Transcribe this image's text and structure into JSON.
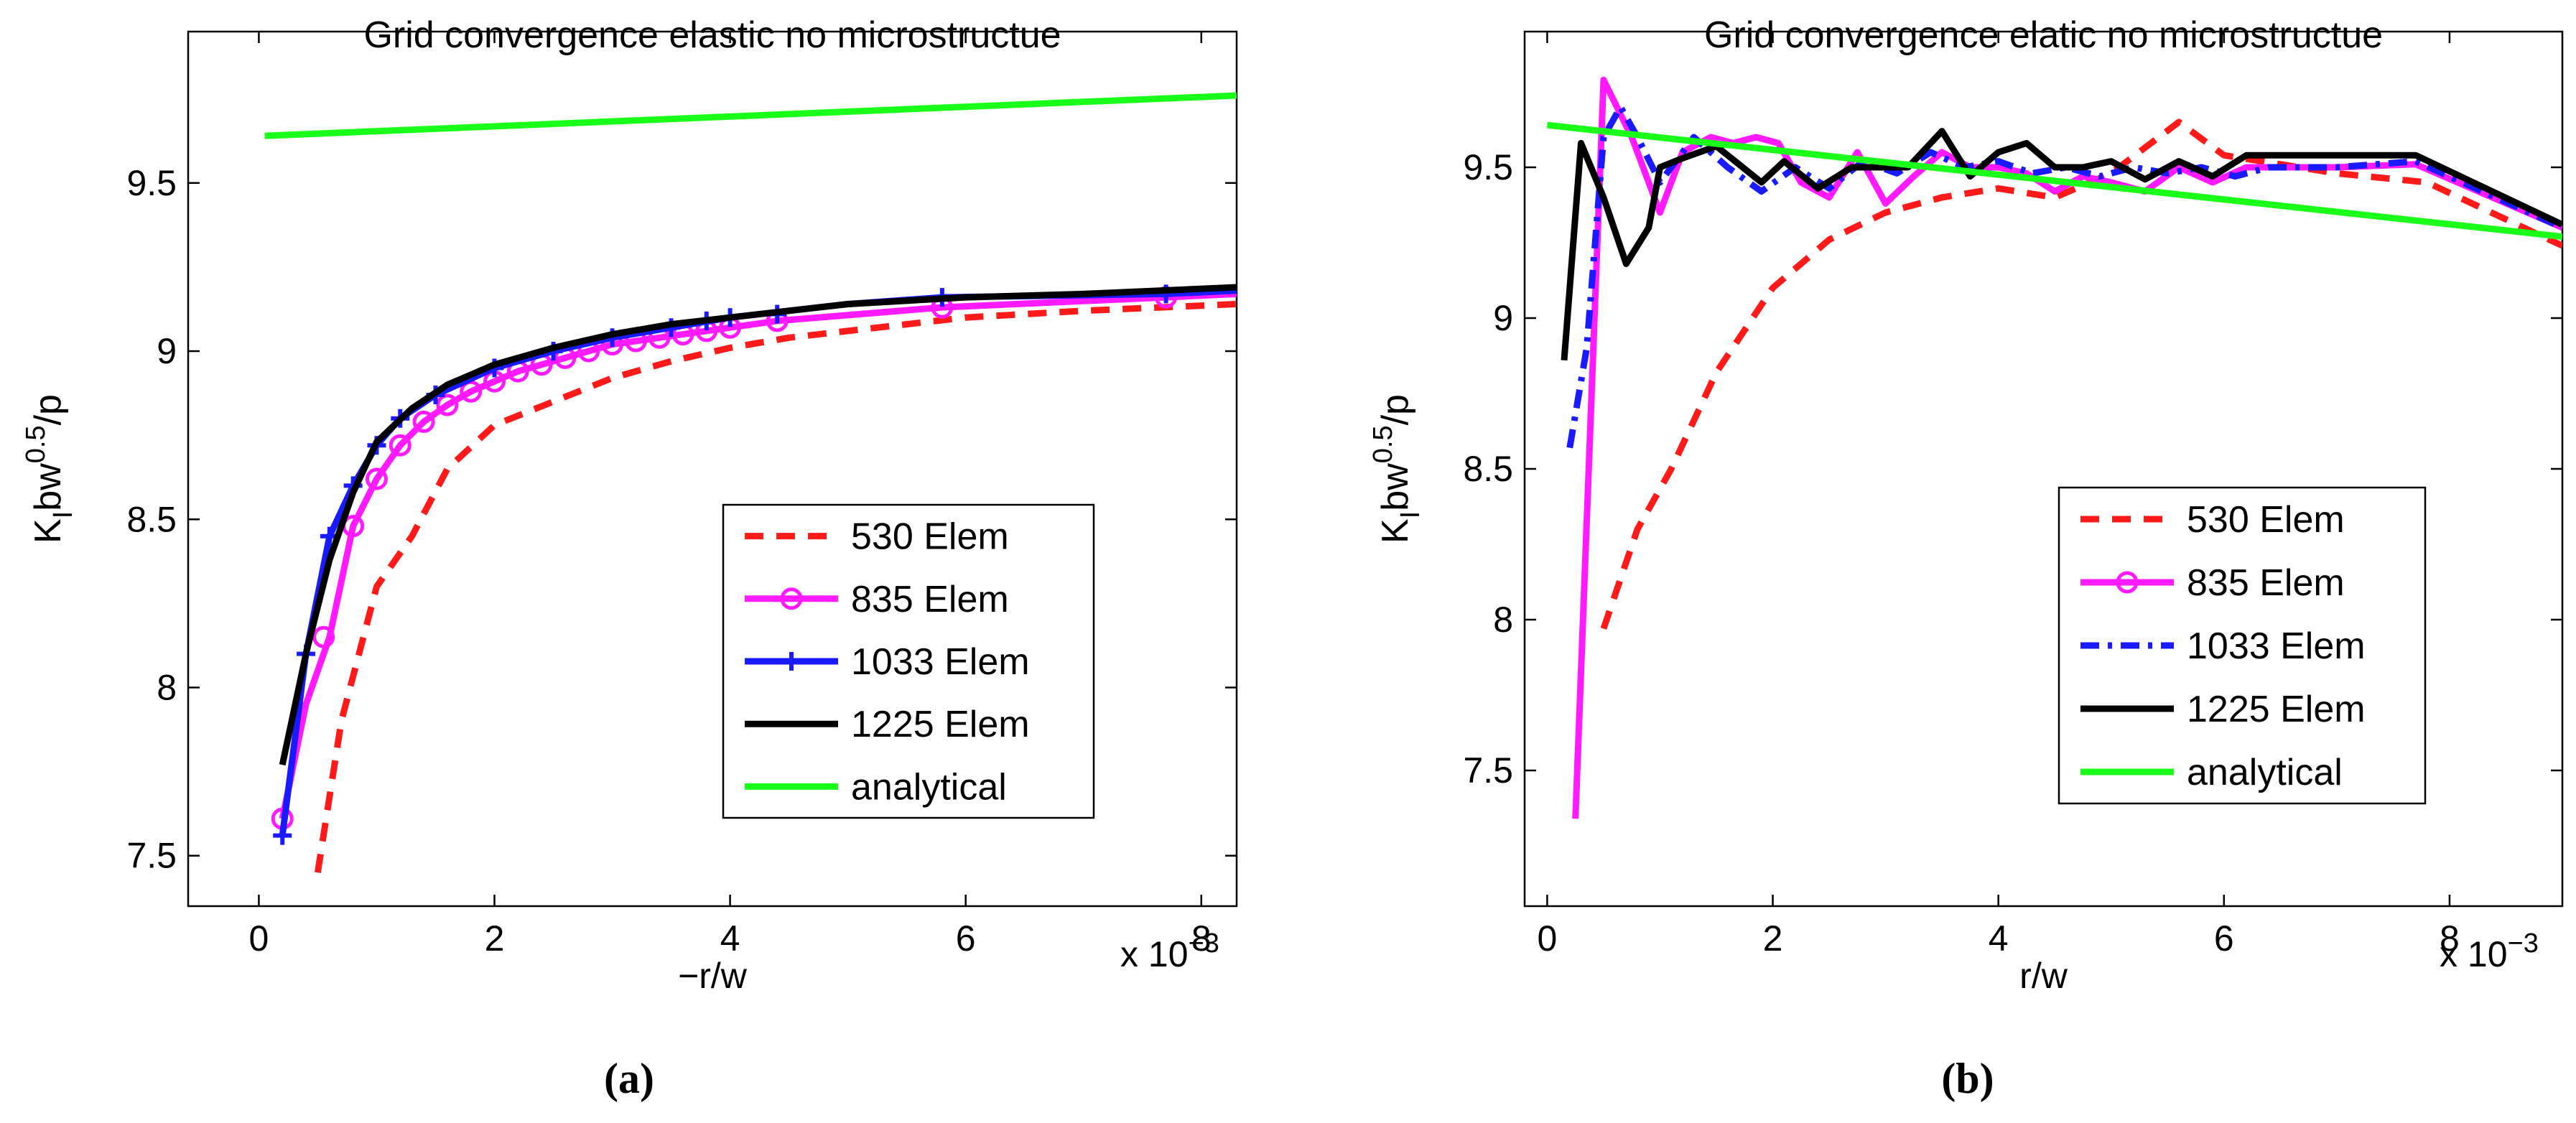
{
  "chart_data": [
    {
      "type": "line",
      "title": "Grid convergence elastic no microstructue",
      "xlabel": "−r/w",
      "ylabel_main": "K",
      "ylabel_sub": "I",
      "ylabel_rest": "bw",
      "ylabel_sup": "0.5",
      "ylabel_end": "/p",
      "x_exponent_label": "x 10",
      "x_exponent_sup": "−3",
      "xlim": [
        -0.6,
        8.3
      ],
      "ylim": [
        7.35,
        9.95
      ],
      "xticks": [
        0,
        2,
        4,
        6,
        8
      ],
      "xtick_labels": [
        "0",
        "2",
        "4",
        "6",
        "8"
      ],
      "yticks": [
        7.5,
        8,
        8.5,
        9,
        9.5
      ],
      "ytick_labels": [
        "7.5",
        "8",
        "8.5",
        "9",
        "9.5"
      ],
      "panel_label": "(a)",
      "legend_position": "lower-right-inside",
      "series": [
        {
          "name": "530 Elem",
          "color": "#ff1a1a",
          "dash": "dashed",
          "marker": "none",
          "x": [
            0.5,
            0.7,
            1.0,
            1.3,
            1.6,
            2.0,
            2.5,
            3.0,
            3.5,
            4.0,
            4.5,
            5.0,
            5.5,
            6.0,
            7.0,
            8.3
          ],
          "y": [
            7.45,
            7.9,
            8.3,
            8.45,
            8.65,
            8.78,
            8.85,
            8.92,
            8.97,
            9.01,
            9.04,
            9.06,
            9.08,
            9.1,
            9.12,
            9.14
          ]
        },
        {
          "name": "835 Elem",
          "color": "#ff1aff",
          "dash": "solid",
          "marker": "circle",
          "x": [
            0.2,
            0.4,
            0.6,
            0.8,
            1.0,
            1.2,
            1.4,
            1.6,
            1.8,
            2.0,
            2.2,
            2.4,
            2.6,
            2.8,
            3.0,
            3.2,
            3.4,
            3.6,
            3.8,
            4.0,
            4.4,
            5.8,
            7.7,
            8.3
          ],
          "y": [
            7.61,
            7.95,
            8.15,
            8.48,
            8.62,
            8.72,
            8.79,
            8.84,
            8.88,
            8.91,
            8.94,
            8.96,
            8.98,
            9.0,
            9.02,
            9.03,
            9.04,
            9.05,
            9.06,
            9.07,
            9.09,
            9.13,
            9.16,
            9.17
          ],
          "marker_x": [
            0.2,
            0.55,
            0.8,
            1.0,
            1.2,
            1.4,
            1.6,
            1.8,
            2.0,
            2.2,
            2.4,
            2.6,
            2.8,
            3.0,
            3.2,
            3.4,
            3.6,
            3.8,
            4.0,
            4.4,
            5.8,
            7.7
          ],
          "marker_y": [
            7.61,
            8.15,
            8.48,
            8.62,
            8.72,
            8.79,
            8.84,
            8.88,
            8.91,
            8.94,
            8.96,
            8.98,
            9.0,
            9.02,
            9.03,
            9.04,
            9.05,
            9.06,
            9.07,
            9.09,
            9.13,
            9.16
          ]
        },
        {
          "name": "1033 Elem",
          "color": "#1a1aff",
          "dash": "solid",
          "marker": "plus",
          "x": [
            0.2,
            0.4,
            0.6,
            0.8,
            1.0,
            1.2,
            1.5,
            2.0,
            2.5,
            3.0,
            3.5,
            4.0,
            4.5,
            5.0,
            5.8,
            7.7,
            8.3
          ],
          "y": [
            7.56,
            8.1,
            8.45,
            8.6,
            8.72,
            8.8,
            8.87,
            8.95,
            9.0,
            9.04,
            9.07,
            9.1,
            9.12,
            9.14,
            9.16,
            9.17,
            9.18
          ],
          "marker_x": [
            0.2,
            0.4,
            0.6,
            0.8,
            1.0,
            1.2,
            1.5,
            2.0,
            2.5,
            3.0,
            3.5,
            3.8,
            4.0,
            4.4,
            5.8,
            7.7
          ],
          "marker_y": [
            7.56,
            8.1,
            8.45,
            8.6,
            8.72,
            8.8,
            8.87,
            8.95,
            9.0,
            9.04,
            9.07,
            9.09,
            9.1,
            9.11,
            9.16,
            9.17
          ]
        },
        {
          "name": "1225 Elem",
          "color": "#000000",
          "dash": "solid",
          "marker": "none",
          "x": [
            0.2,
            0.4,
            0.6,
            0.8,
            1.0,
            1.3,
            1.6,
            2.0,
            2.5,
            3.0,
            3.5,
            4.0,
            4.5,
            5.0,
            6.0,
            7.0,
            8.3
          ],
          "y": [
            7.77,
            8.1,
            8.38,
            8.58,
            8.73,
            8.83,
            8.9,
            8.96,
            9.01,
            9.05,
            9.08,
            9.1,
            9.12,
            9.14,
            9.16,
            9.17,
            9.19
          ]
        },
        {
          "name": "analytical",
          "color": "#1aff1a",
          "dash": "solid",
          "marker": "none",
          "x": [
            0.05,
            8.3
          ],
          "y": [
            9.64,
            9.76
          ]
        }
      ]
    },
    {
      "type": "line",
      "title": "Grid convergence elatic no microstructue",
      "xlabel": "r/w",
      "ylabel_main": "K",
      "ylabel_sub": "I",
      "ylabel_rest": "bw",
      "ylabel_sup": "0.5",
      "ylabel_end": "/p",
      "x_exponent_label": "x 10",
      "x_exponent_sup": "−3",
      "xlim": [
        -0.2,
        9.0
      ],
      "ylim": [
        7.05,
        9.95
      ],
      "xticks": [
        0,
        2,
        4,
        6,
        8
      ],
      "xtick_labels": [
        "0",
        "2",
        "4",
        "6",
        "8"
      ],
      "yticks": [
        7.5,
        8,
        8.5,
        9,
        9.5
      ],
      "ytick_labels": [
        "7.5",
        "8",
        "8.5",
        "9",
        "9.5"
      ],
      "panel_label": "(b)",
      "legend_position": "lower-right-inside",
      "series": [
        {
          "name": "530 Elem",
          "color": "#ff1a1a",
          "dash": "dashed",
          "marker": "none",
          "x": [
            0.5,
            0.8,
            1.1,
            1.5,
            2.0,
            2.5,
            3.0,
            3.5,
            4.0,
            4.5,
            5.0,
            5.6,
            6.0,
            7.0,
            7.8,
            9.0
          ],
          "y": [
            7.97,
            8.3,
            8.5,
            8.82,
            9.1,
            9.26,
            9.35,
            9.4,
            9.43,
            9.4,
            9.48,
            9.65,
            9.54,
            9.48,
            9.45,
            9.24
          ]
        },
        {
          "name": "835 Elem",
          "color": "#ff1aff",
          "dash": "solid",
          "marker": "circle",
          "x": [
            0.25,
            0.5,
            0.75,
            1.0,
            1.2,
            1.45,
            1.65,
            1.85,
            2.05,
            2.25,
            2.5,
            2.75,
            3.0,
            3.25,
            3.5,
            3.75,
            4.0,
            4.25,
            4.5,
            4.75,
            5.0,
            5.3,
            5.6,
            5.9,
            6.2,
            6.5,
            7.0,
            7.7,
            9.0
          ],
          "y": [
            7.34,
            9.79,
            9.6,
            9.35,
            9.55,
            9.6,
            9.58,
            9.6,
            9.58,
            9.45,
            9.4,
            9.55,
            9.38,
            9.47,
            9.55,
            9.5,
            9.5,
            9.48,
            9.42,
            9.47,
            9.45,
            9.42,
            9.5,
            9.45,
            9.5,
            9.5,
            9.5,
            9.51,
            9.3
          ]
        },
        {
          "name": "1033 Elem",
          "color": "#1a1aff",
          "dash": "dashdot",
          "marker": "none",
          "x": [
            0.2,
            0.35,
            0.5,
            0.65,
            0.8,
            1.0,
            1.3,
            1.6,
            1.9,
            2.2,
            2.5,
            2.8,
            3.1,
            3.4,
            3.7,
            4.0,
            4.3,
            4.6,
            4.9,
            5.2,
            5.5,
            5.8,
            6.1,
            6.4,
            7.0,
            7.7,
            9.0
          ],
          "y": [
            8.57,
            8.9,
            9.6,
            9.7,
            9.6,
            9.45,
            9.6,
            9.5,
            9.42,
            9.5,
            9.43,
            9.52,
            9.48,
            9.55,
            9.5,
            9.52,
            9.48,
            9.5,
            9.47,
            9.5,
            9.48,
            9.5,
            9.47,
            9.5,
            9.5,
            9.52,
            9.3
          ]
        },
        {
          "name": "1225 Elem",
          "color": "#000000",
          "dash": "solid",
          "marker": "none",
          "x": [
            0.15,
            0.3,
            0.5,
            0.7,
            0.9,
            1.0,
            1.2,
            1.5,
            1.9,
            2.1,
            2.4,
            2.7,
            3.0,
            3.2,
            3.5,
            3.75,
            4.0,
            4.25,
            4.5,
            4.75,
            5.0,
            5.3,
            5.6,
            5.9,
            6.2,
            7.7,
            9.0
          ],
          "y": [
            8.86,
            9.58,
            9.4,
            9.18,
            9.3,
            9.5,
            9.53,
            9.57,
            9.45,
            9.52,
            9.43,
            9.5,
            9.5,
            9.5,
            9.62,
            9.47,
            9.55,
            9.58,
            9.5,
            9.5,
            9.52,
            9.46,
            9.52,
            9.47,
            9.54,
            9.54,
            9.31
          ]
        },
        {
          "name": "analytical",
          "color": "#1aff1a",
          "dash": "solid",
          "marker": "none",
          "x": [
            0.0,
            9.0
          ],
          "y": [
            9.64,
            9.27
          ]
        }
      ]
    }
  ]
}
